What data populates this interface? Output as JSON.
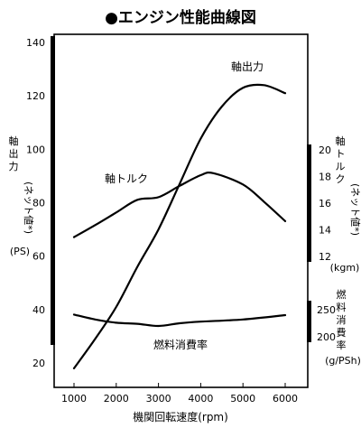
{
  "chart_data": {
    "type": "line",
    "title": "●エンジン性能曲線図",
    "xlabel": "機関回転速度",
    "xunit": "(rpm)",
    "xlim": [
      500,
      6500
    ],
    "x_ticks": [
      1000,
      2000,
      3000,
      4000,
      5000,
      6000
    ],
    "left_axis": {
      "label": "軸出力",
      "label_sub": "(ネット値*)",
      "unit": "(PS)",
      "lim": [
        10,
        145
      ],
      "ticks": [
        20,
        40,
        60,
        80,
        100,
        120,
        140
      ]
    },
    "right_axis_torque": {
      "label": "軸トルク",
      "label_sub": "(ネット値*)",
      "unit": "(kgm)",
      "ticks": [
        12,
        14,
        16,
        18,
        20
      ]
    },
    "right_axis_fuel": {
      "label": "燃料消費率",
      "unit": "(g/PSh)",
      "ticks": [
        200,
        250
      ]
    },
    "series": [
      {
        "name": "軸出力",
        "axis": "left",
        "x": [
          1000,
          1500,
          2000,
          2500,
          3000,
          3500,
          4000,
          4500,
          5000,
          5500,
          6000
        ],
        "values": [
          18,
          29,
          41,
          56,
          70,
          87,
          104,
          116,
          123,
          124,
          121
        ]
      },
      {
        "name": "軸トルク",
        "axis": "right_torque",
        "x": [
          1000,
          1500,
          2000,
          2500,
          3000,
          3500,
          4000,
          4300,
          5000,
          5500,
          6000
        ],
        "values": [
          13.45,
          14.35,
          15.3,
          16.25,
          16.45,
          17.3,
          18.1,
          18.25,
          17.4,
          16.1,
          14.65
        ]
      },
      {
        "name": "燃料消費率",
        "axis": "right_fuel",
        "x": [
          1000,
          1500,
          2000,
          2500,
          3000,
          3500,
          4000,
          5000,
          6000
        ],
        "values": [
          241,
          232,
          226,
          224,
          220,
          225,
          228,
          232,
          240
        ]
      }
    ]
  }
}
